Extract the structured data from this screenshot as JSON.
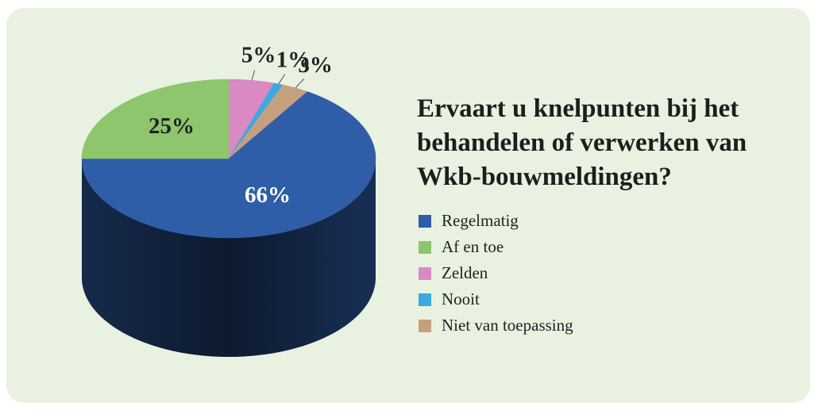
{
  "chart_data": {
    "type": "pie",
    "title": "Ervaart u knelpunten bij het behandelen of verwerken van Wkb-bouwmeldingen?",
    "categories": [
      "Regelmatig",
      "Af en toe",
      "Zelden",
      "Nooit",
      "Niet van toepassing"
    ],
    "values": [
      66,
      25,
      5,
      1,
      3
    ],
    "value_labels": [
      "66%",
      "25%",
      "5%",
      "1%",
      "3%"
    ],
    "colors": [
      "#2f5da8",
      "#8dc66c",
      "#d98ac3",
      "#3ba9e2",
      "#c4a07f"
    ],
    "legend": "right"
  }
}
